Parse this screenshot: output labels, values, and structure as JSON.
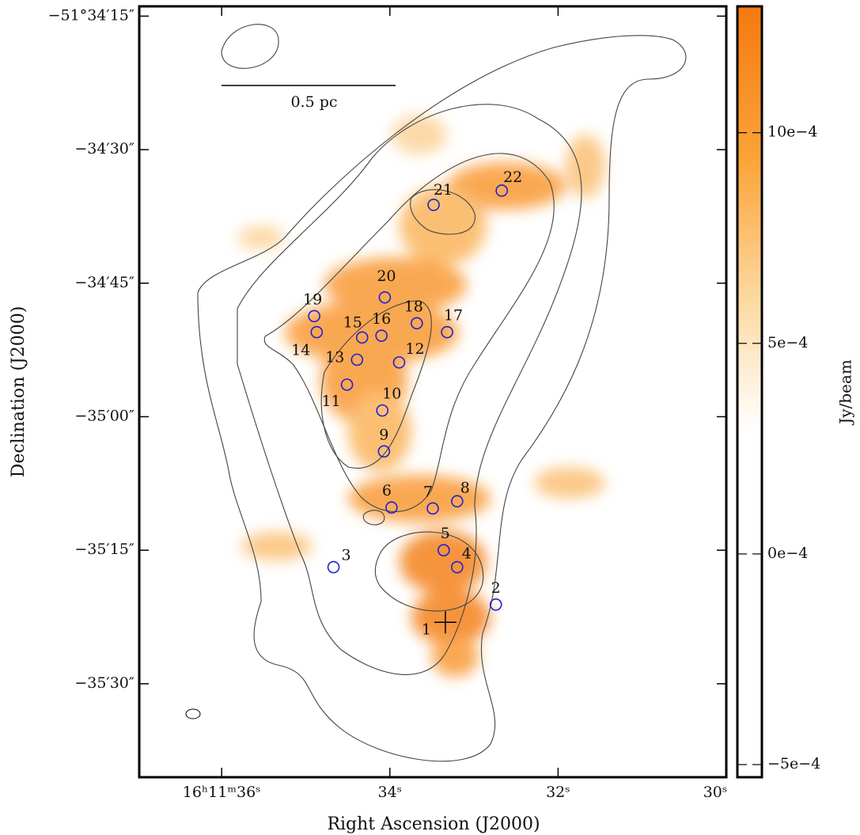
{
  "chart_data": {
    "type": "image",
    "xlabel": "Right Ascension (J2000)",
    "ylabel": "Declination (J2000)",
    "xlim": [
      36.98,
      30
    ],
    "ylim": [
      13.9,
      100.5
    ],
    "xticks": [
      {
        "value": 36,
        "label": "16ʰ11ᵐ36ˢ"
      },
      {
        "value": 34,
        "label": "34ˢ"
      },
      {
        "value": 32,
        "label": "32ˢ"
      },
      {
        "value": 30,
        "label": "30ˢ"
      }
    ],
    "yticks": [
      {
        "value": 15,
        "label": "−51°34′15″"
      },
      {
        "value": 30,
        "label": "−34′30″"
      },
      {
        "value": 45,
        "label": "−34′45″"
      },
      {
        "value": 60,
        "label": "−35′00″"
      },
      {
        "value": 75,
        "label": "−35′15″"
      },
      {
        "value": 90,
        "label": "−35′30″"
      }
    ],
    "scale_bar": "0.5 pc",
    "marker_color": "#2020d0",
    "points": {
      "labels": [
        "1",
        "2",
        "3",
        "4",
        "5",
        "6",
        "7",
        "8",
        "9",
        "10",
        "11",
        "12",
        "13",
        "14",
        "15",
        "16",
        "17",
        "18",
        "19",
        "20",
        "21",
        "22"
      ],
      "x": [
        33.34,
        32.74,
        34.67,
        33.2,
        33.36,
        33.98,
        33.49,
        33.2,
        34.07,
        34.09,
        34.51,
        33.89,
        34.39,
        34.87,
        34.33,
        34.1,
        33.32,
        33.68,
        34.9,
        34.06,
        33.48,
        32.67
      ],
      "y": [
        83.1,
        81.1,
        76.9,
        76.9,
        75.0,
        70.2,
        70.3,
        69.5,
        63.9,
        59.3,
        56.4,
        53.9,
        53.6,
        50.5,
        51.1,
        50.9,
        50.5,
        49.5,
        48.7,
        46.6,
        36.2,
        34.6
      ]
    },
    "colorbar": {
      "label": "Jy/beam",
      "lim": [
        -0.00053,
        0.0013
      ],
      "ticks": [
        {
          "value": 0.001,
          "label": "10e−4"
        },
        {
          "value": 0.0005,
          "label": "5e−4"
        },
        {
          "value": 0,
          "label": "0e−4"
        },
        {
          "value": -0.0005,
          "label": "−5e−4"
        }
      ]
    }
  }
}
